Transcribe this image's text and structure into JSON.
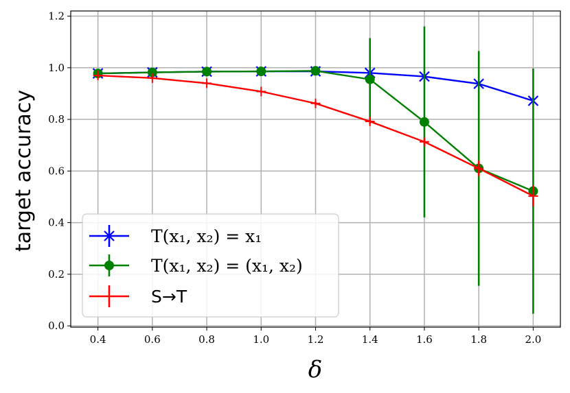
{
  "chart_data": {
    "type": "line",
    "xlabel": "δ",
    "ylabel": "target accuracy",
    "xlim": [
      0.3,
      2.1
    ],
    "ylim": [
      -0.005,
      1.22
    ],
    "xticks": [
      "0.4",
      "0.6",
      "0.8",
      "1.0",
      "1.2",
      "1.4",
      "1.6",
      "1.8",
      "2.0"
    ],
    "yticks": [
      "0.0",
      "0.2",
      "0.4",
      "0.6",
      "0.8",
      "1.0",
      "1.2"
    ],
    "grid": true,
    "legend_position": "lower-left",
    "series": [
      {
        "name": "T(x₁, x₂) = x₁",
        "color": "#0000ff",
        "marker": "x-star",
        "x": [
          0.4,
          0.6,
          0.8,
          1.0,
          1.2,
          1.4,
          1.6,
          1.8,
          2.0
        ],
        "y": [
          0.978,
          0.982,
          0.985,
          0.986,
          0.986,
          0.98,
          0.966,
          0.938,
          0.872
        ],
        "err": [
          0.005,
          0.004,
          0.004,
          0.004,
          0.004,
          0.004,
          0.006,
          0.01,
          0.012
        ]
      },
      {
        "name": "T(x₁, x₂) = (x₁, x₂)",
        "color": "#008000",
        "marker": "circle",
        "x": [
          0.4,
          0.6,
          0.8,
          1.0,
          1.2,
          1.4,
          1.6,
          1.8,
          2.0
        ],
        "y": [
          0.978,
          0.982,
          0.985,
          0.986,
          0.988,
          0.955,
          0.79,
          0.61,
          0.522
        ],
        "err": [
          0.006,
          0.006,
          0.006,
          0.006,
          0.006,
          0.16,
          0.37,
          0.455,
          0.475
        ]
      },
      {
        "name": "S→T",
        "color": "#ff0000",
        "marker": "plus",
        "x": [
          0.4,
          0.6,
          0.8,
          1.0,
          1.2,
          1.4,
          1.6,
          1.8,
          2.0
        ],
        "y": [
          0.97,
          0.96,
          0.94,
          0.908,
          0.862,
          0.792,
          0.713,
          0.61,
          0.503
        ],
        "err": [
          0.004,
          0.004,
          0.004,
          0.005,
          0.007,
          0.01,
          0.012,
          0.03,
          0.04
        ]
      }
    ]
  }
}
